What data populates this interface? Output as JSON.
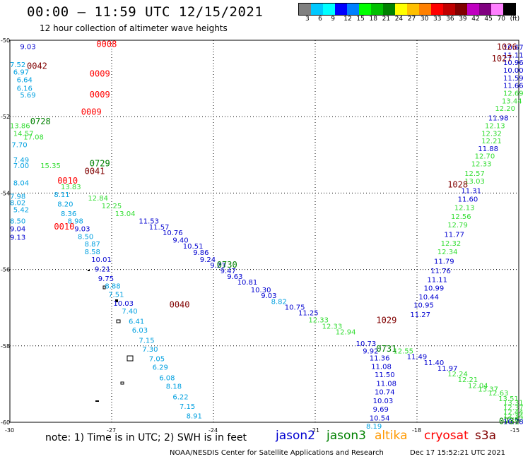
{
  "header": {
    "title": "00:00 – 11:59 UTC 12/15/2021",
    "subtitle": "12 hour collection of altimeter wave heights"
  },
  "colorbar": {
    "colors": [
      "#808080",
      "#00c8ff",
      "#00ffff",
      "#0000ff",
      "#0080ff",
      "#00ff00",
      "#00c000",
      "#008000",
      "#ffff00",
      "#ffc000",
      "#ff8000",
      "#ff0000",
      "#c00000",
      "#800000",
      "#c000c0",
      "#800080",
      "#ff80ff",
      "#000000"
    ],
    "labels": [
      "3",
      "6",
      "9",
      "12",
      "15",
      "18",
      "21",
      "24",
      "27",
      "30",
      "33",
      "36",
      "39",
      "42",
      "45",
      "70",
      "(ft)"
    ]
  },
  "axes": {
    "x_ticks": [
      "-30",
      "-27",
      "-24",
      "-21",
      "-18",
      "-15"
    ],
    "y_ticks": [
      "-50",
      "-52",
      "-54",
      "-56",
      "-58",
      "-60"
    ]
  },
  "note": "note: 1) Time is in UTC; 2) SWH is in feet",
  "satellites": [
    {
      "name": "jason2",
      "color": "#0000d0"
    },
    {
      "name": "jason3",
      "color": "#008000"
    },
    {
      "name": "altika",
      "color": "#ff9900"
    },
    {
      "name": "cryosat",
      "color": "#ff0000"
    },
    {
      "name": "s3a",
      "color": "#800000"
    }
  ],
  "footer": {
    "left": "NOAA/NESDIS Center for Satellite Applications and Research",
    "right": "Dec 17 15:52:21 UTC 2021"
  },
  "wave_points": [
    {
      "v": "9.03",
      "x": -29.7,
      "y": -50.23,
      "c": "#0000d0"
    },
    {
      "v": "7.52",
      "x": -30.0,
      "y": -50.7,
      "c": "#00a0e0"
    },
    {
      "v": "6.97",
      "x": -29.9,
      "y": -50.9,
      "c": "#00a0e0"
    },
    {
      "v": "6.64",
      "x": -29.8,
      "y": -51.1,
      "c": "#00a0e0"
    },
    {
      "v": "6.16",
      "x": -29.8,
      "y": -51.32,
      "c": "#00a0e0"
    },
    {
      "v": "5.69",
      "x": -29.7,
      "y": -51.5,
      "c": "#00a0e0"
    },
    {
      "v": "13.86",
      "x": -30.0,
      "y": -52.3,
      "c": "#33dd33"
    },
    {
      "v": "14.57",
      "x": -29.9,
      "y": -52.5,
      "c": "#33dd33"
    },
    {
      "v": "17.08",
      "x": -29.6,
      "y": -52.6,
      "c": "#33dd33"
    },
    {
      "v": "7.70",
      "x": -29.95,
      "y": -52.8,
      "c": "#00a0e0"
    },
    {
      "v": "7.49",
      "x": -29.9,
      "y": -53.2,
      "c": "#00a0e0"
    },
    {
      "v": "7.00",
      "x": -29.9,
      "y": -53.35,
      "c": "#00a0e0"
    },
    {
      "v": "15.35",
      "x": -29.1,
      "y": -53.35,
      "c": "#33dd33"
    },
    {
      "v": "8.04",
      "x": -29.9,
      "y": -53.8,
      "c": "#00a0e0"
    },
    {
      "v": "7.98",
      "x": -30.0,
      "y": -54.15,
      "c": "#00a0e0"
    },
    {
      "v": "8.02",
      "x": -30.0,
      "y": -54.32,
      "c": "#00a0e0"
    },
    {
      "v": "5.42",
      "x": -29.9,
      "y": -54.5,
      "c": "#00a0e0"
    },
    {
      "v": "8.50",
      "x": -30.0,
      "y": -54.8,
      "c": "#00a0e0"
    },
    {
      "v": "9.04",
      "x": -30.0,
      "y": -55.0,
      "c": "#0000d0"
    },
    {
      "v": "9.13",
      "x": -30.0,
      "y": -55.22,
      "c": "#0000d0"
    },
    {
      "v": "13.83",
      "x": -28.5,
      "y": -53.9,
      "c": "#33dd33"
    },
    {
      "v": "8.11",
      "x": -28.7,
      "y": -54.1,
      "c": "#00a0e0"
    },
    {
      "v": "8.20",
      "x": -28.6,
      "y": -54.35,
      "c": "#00a0e0"
    },
    {
      "v": "8.36",
      "x": -28.5,
      "y": -54.6,
      "c": "#00a0e0"
    },
    {
      "v": "8.98",
      "x": -28.3,
      "y": -54.8,
      "c": "#00a0e0"
    },
    {
      "v": "9.03",
      "x": -28.1,
      "y": -55.0,
      "c": "#0000d0"
    },
    {
      "v": "8.50",
      "x": -28.0,
      "y": -55.2,
      "c": "#00a0e0"
    },
    {
      "v": "8.87",
      "x": -27.8,
      "y": -55.4,
      "c": "#00a0e0"
    },
    {
      "v": "8.58",
      "x": -27.8,
      "y": -55.6,
      "c": "#00a0e0"
    },
    {
      "v": "10.01",
      "x": -27.6,
      "y": -55.8,
      "c": "#0000d0"
    },
    {
      "v": "9.21",
      "x": -27.5,
      "y": -56.05,
      "c": "#0000d0"
    },
    {
      "v": "9.75",
      "x": -27.4,
      "y": -56.3,
      "c": "#0000d0"
    },
    {
      "v": "8.88",
      "x": -27.2,
      "y": -56.5,
      "c": "#00a0e0"
    },
    {
      "v": "7.51",
      "x": -27.1,
      "y": -56.72,
      "c": "#00a0e0"
    },
    {
      "v": "10.03",
      "x": -26.95,
      "y": -56.95,
      "c": "#0000d0"
    },
    {
      "v": "7.40",
      "x": -26.7,
      "y": -57.15,
      "c": "#00a0e0"
    },
    {
      "v": "6.41",
      "x": -26.5,
      "y": -57.42,
      "c": "#00a0e0"
    },
    {
      "v": "6.03",
      "x": -26.4,
      "y": -57.65,
      "c": "#00a0e0"
    },
    {
      "v": "7.15",
      "x": -26.2,
      "y": -57.92,
      "c": "#00a0e0"
    },
    {
      "v": "7.30",
      "x": -26.1,
      "y": -58.15,
      "c": "#00a0e0"
    },
    {
      "v": "7.05",
      "x": -25.9,
      "y": -58.4,
      "c": "#00a0e0"
    },
    {
      "v": "6.29",
      "x": -25.8,
      "y": -58.62,
      "c": "#00a0e0"
    },
    {
      "v": "6.08",
      "x": -25.6,
      "y": -58.9,
      "c": "#00a0e0"
    },
    {
      "v": "8.18",
      "x": -25.4,
      "y": -59.12,
      "c": "#00a0e0"
    },
    {
      "v": "6.22",
      "x": -25.2,
      "y": -59.4,
      "c": "#00a0e0"
    },
    {
      "v": "7.15",
      "x": -25.0,
      "y": -59.65,
      "c": "#00a0e0"
    },
    {
      "v": "8.91",
      "x": -24.8,
      "y": -59.9,
      "c": "#00a0e0"
    },
    {
      "v": "12.84",
      "x": -27.7,
      "y": -54.2,
      "c": "#33dd33"
    },
    {
      "v": "12.25",
      "x": -27.3,
      "y": -54.4,
      "c": "#33dd33"
    },
    {
      "v": "13.04",
      "x": -26.9,
      "y": -54.6,
      "c": "#33dd33"
    },
    {
      "v": "11.53",
      "x": -26.2,
      "y": -54.8,
      "c": "#0000d0"
    },
    {
      "v": "11.57",
      "x": -25.9,
      "y": -54.95,
      "c": "#0000d0"
    },
    {
      "v": "10.76",
      "x": -25.5,
      "y": -55.1,
      "c": "#0000d0"
    },
    {
      "v": "9.40",
      "x": -25.2,
      "y": -55.3,
      "c": "#0000d0"
    },
    {
      "v": "10.51",
      "x": -24.9,
      "y": -55.45,
      "c": "#0000d0"
    },
    {
      "v": "9.86",
      "x": -24.6,
      "y": -55.62,
      "c": "#0000d0"
    },
    {
      "v": "9.24",
      "x": -24.4,
      "y": -55.8,
      "c": "#0000d0"
    },
    {
      "v": "9.23",
      "x": -24.1,
      "y": -55.95,
      "c": "#0000d0"
    },
    {
      "v": "9.47",
      "x": -23.8,
      "y": -56.1,
      "c": "#0000d0"
    },
    {
      "v": "9.63",
      "x": -23.6,
      "y": -56.25,
      "c": "#0000d0"
    },
    {
      "v": "10.81",
      "x": -23.3,
      "y": -56.4,
      "c": "#0000d0"
    },
    {
      "v": "10.30",
      "x": -22.9,
      "y": -56.6,
      "c": "#0000d0"
    },
    {
      "v": "9.03",
      "x": -22.6,
      "y": -56.75,
      "c": "#0000d0"
    },
    {
      "v": "8.82",
      "x": -22.3,
      "y": -56.9,
      "c": "#00a0e0"
    },
    {
      "v": "10.75",
      "x": -21.9,
      "y": -57.05,
      "c": "#0000d0"
    },
    {
      "v": "11.25",
      "x": -21.5,
      "y": -57.2,
      "c": "#0000d0"
    },
    {
      "v": "12.33",
      "x": -21.2,
      "y": -57.38,
      "c": "#33dd33"
    },
    {
      "v": "12.33",
      "x": -20.8,
      "y": -57.55,
      "c": "#33dd33"
    },
    {
      "v": "12.94",
      "x": -20.4,
      "y": -57.7,
      "c": "#33dd33"
    },
    {
      "v": "10.73",
      "x": -19.8,
      "y": -58.0,
      "c": "#0000d0"
    },
    {
      "v": "9.92",
      "x": -19.6,
      "y": -58.2,
      "c": "#0000d0"
    },
    {
      "v": "11.36",
      "x": -19.4,
      "y": -58.38,
      "c": "#0000d0"
    },
    {
      "v": "12.55",
      "x": -18.7,
      "y": -58.2,
      "c": "#33dd33"
    },
    {
      "v": "11.49",
      "x": -18.3,
      "y": -58.35,
      "c": "#0000d0"
    },
    {
      "v": "11.40",
      "x": -17.8,
      "y": -58.5,
      "c": "#0000d0"
    },
    {
      "v": "11.97",
      "x": -17.4,
      "y": -58.65,
      "c": "#0000d0"
    },
    {
      "v": "12.24",
      "x": -17.1,
      "y": -58.8,
      "c": "#33dd33"
    },
    {
      "v": "12.21",
      "x": -16.8,
      "y": -58.95,
      "c": "#33dd33"
    },
    {
      "v": "12.04",
      "x": -16.5,
      "y": -59.1,
      "c": "#33dd33"
    },
    {
      "v": "13.37",
      "x": -16.2,
      "y": -59.2,
      "c": "#33dd33"
    },
    {
      "v": "12.63",
      "x": -15.9,
      "y": -59.3,
      "c": "#33dd33"
    },
    {
      "v": "13.51",
      "x": -15.6,
      "y": -59.45,
      "c": "#33dd33"
    },
    {
      "v": "13.31",
      "x": -15.4,
      "y": -59.55,
      "c": "#33dd33"
    },
    {
      "v": "12.37",
      "x": -15.1,
      "y": -59.68,
      "c": "#33dd33"
    },
    {
      "v": "12.44",
      "x": -14.9,
      "y": -59.8,
      "c": "#33dd33"
    },
    {
      "v": "12.34",
      "x": -14.7,
      "y": -59.9,
      "c": "#33dd33"
    },
    {
      "v": "12.62",
      "x": -14.4,
      "y": -59.98,
      "c": "#33dd33"
    },
    {
      "v": "10.78",
      "x": -14.3,
      "y": -60.05,
      "c": "#0000d0"
    },
    {
      "v": "10.67",
      "x": -15.3,
      "y": -50.25,
      "c": "#0000d0"
    },
    {
      "v": "11.11",
      "x": -15.1,
      "y": -50.45,
      "c": "#0000d0"
    },
    {
      "v": "10.96",
      "x": -15.2,
      "y": -50.65,
      "c": "#0000d0"
    },
    {
      "v": "10.00",
      "x": -15.1,
      "y": -50.85,
      "c": "#0000d0"
    },
    {
      "v": "11.59",
      "x": -15.1,
      "y": -51.05,
      "c": "#0000d0"
    },
    {
      "v": "11.66",
      "x": -15.2,
      "y": -51.25,
      "c": "#0000d0"
    },
    {
      "v": "12.69",
      "x": -15.3,
      "y": -51.45,
      "c": "#33dd33"
    },
    {
      "v": "13.44",
      "x": -15.5,
      "y": -51.65,
      "c": "#33dd33"
    },
    {
      "v": "12.20",
      "x": -15.7,
      "y": -51.85,
      "c": "#33dd33"
    },
    {
      "v": "11.98",
      "x": -15.9,
      "y": -52.1,
      "c": "#0000d0"
    },
    {
      "v": "12.13",
      "x": -16.0,
      "y": -52.3,
      "c": "#33dd33"
    },
    {
      "v": "12.32",
      "x": -16.1,
      "y": -52.5,
      "c": "#33dd33"
    },
    {
      "v": "12.21",
      "x": -16.1,
      "y": -52.7,
      "c": "#33dd33"
    },
    {
      "v": "11.88",
      "x": -16.2,
      "y": -52.9,
      "c": "#0000d0"
    },
    {
      "v": "12.70",
      "x": -16.3,
      "y": -53.1,
      "c": "#33dd33"
    },
    {
      "v": "12.33",
      "x": -16.4,
      "y": -53.3,
      "c": "#33dd33"
    },
    {
      "v": "12.57",
      "x": -16.6,
      "y": -53.55,
      "c": "#33dd33"
    },
    {
      "v": "13.03",
      "x": -16.6,
      "y": -53.75,
      "c": "#33dd33"
    },
    {
      "v": "11.31",
      "x": -16.7,
      "y": -54.0,
      "c": "#0000d0"
    },
    {
      "v": "11.60",
      "x": -16.8,
      "y": -54.22,
      "c": "#0000d0"
    },
    {
      "v": "12.13",
      "x": -16.9,
      "y": -54.45,
      "c": "#33dd33"
    },
    {
      "v": "12.56",
      "x": -17.0,
      "y": -54.68,
      "c": "#33dd33"
    },
    {
      "v": "12.79",
      "x": -17.1,
      "y": -54.9,
      "c": "#33dd33"
    },
    {
      "v": "11.77",
      "x": -17.2,
      "y": -55.15,
      "c": "#0000d0"
    },
    {
      "v": "12.32",
      "x": -17.3,
      "y": -55.38,
      "c": "#33dd33"
    },
    {
      "v": "12.34",
      "x": -17.4,
      "y": -55.6,
      "c": "#33dd33"
    },
    {
      "v": "11.79",
      "x": -17.5,
      "y": -55.85,
      "c": "#0000d0"
    },
    {
      "v": "11.76",
      "x": -17.6,
      "y": -56.1,
      "c": "#0000d0"
    },
    {
      "v": "11.11",
      "x": -17.7,
      "y": -56.33,
      "c": "#0000d0"
    },
    {
      "v": "10.99",
      "x": -17.8,
      "y": -56.55,
      "c": "#0000d0"
    },
    {
      "v": "10.44",
      "x": -17.95,
      "y": -56.78,
      "c": "#0000d0"
    },
    {
      "v": "10.95",
      "x": -18.1,
      "y": -57.0,
      "c": "#0000d0"
    },
    {
      "v": "11.27",
      "x": -18.2,
      "y": -57.25,
      "c": "#0000d0"
    },
    {
      "v": "11.08",
      "x": -19.35,
      "y": -58.6,
      "c": "#0000d0"
    },
    {
      "v": "11.50",
      "x": -19.25,
      "y": -58.82,
      "c": "#0000d0"
    },
    {
      "v": "11.08",
      "x": -19.2,
      "y": -59.05,
      "c": "#0000d0"
    },
    {
      "v": "10.74",
      "x": -19.25,
      "y": -59.27,
      "c": "#0000d0"
    },
    {
      "v": "10.03",
      "x": -19.3,
      "y": -59.5,
      "c": "#0000d0"
    },
    {
      "v": "9.69",
      "x": -19.3,
      "y": -59.72,
      "c": "#0000d0"
    },
    {
      "v": "10.54",
      "x": -19.4,
      "y": -59.95,
      "c": "#0000d0"
    },
    {
      "v": "8.19",
      "x": -19.5,
      "y": -60.17,
      "c": "#00a0e0"
    }
  ],
  "time_marks": [
    {
      "t": "0008",
      "x": -27.45,
      "y": -50.18,
      "c": "#ff0000"
    },
    {
      "t": "0042",
      "x": -29.5,
      "y": -50.75,
      "c": "#800000"
    },
    {
      "t": "0009",
      "x": -27.65,
      "y": -50.95,
      "c": "#ff0000"
    },
    {
      "t": "0009",
      "x": -27.65,
      "y": -51.5,
      "c": "#ff0000"
    },
    {
      "t": "0009",
      "x": -27.9,
      "y": -51.95,
      "c": "#ff0000"
    },
    {
      "t": "0728",
      "x": -29.4,
      "y": -52.2,
      "c": "#008000"
    },
    {
      "t": "0729",
      "x": -27.65,
      "y": -53.3,
      "c": "#008000"
    },
    {
      "t": "0041",
      "x": -27.8,
      "y": -53.5,
      "c": "#800000"
    },
    {
      "t": "0010",
      "x": -28.6,
      "y": -53.75,
      "c": "#ff0000"
    },
    {
      "t": "0010",
      "x": -28.7,
      "y": -54.95,
      "c": "#ff0000"
    },
    {
      "t": "0730",
      "x": -23.9,
      "y": -55.95,
      "c": "#008000"
    },
    {
      "t": "0040",
      "x": -25.3,
      "y": -57.0,
      "c": "#800000"
    },
    {
      "t": "1029",
      "x": -19.2,
      "y": -57.4,
      "c": "#800000"
    },
    {
      "t": "0731",
      "x": -19.2,
      "y": -58.15,
      "c": "#008000"
    },
    {
      "t": "0731",
      "x": -15.4,
      "y": -60.05,
      "c": "#008000"
    },
    {
      "t": "1026",
      "x": -15.65,
      "y": -50.25,
      "c": "#800000"
    },
    {
      "t": "1027",
      "x": -15.8,
      "y": -50.55,
      "c": "#800000"
    },
    {
      "t": "1028",
      "x": -17.1,
      "y": -53.85,
      "c": "#800000"
    }
  ]
}
